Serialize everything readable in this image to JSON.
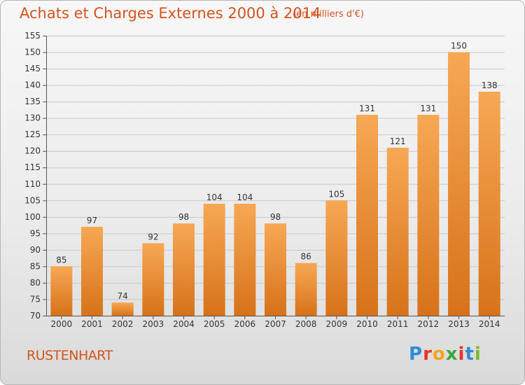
{
  "title": "Achats et Charges Externes 2000 à 2014",
  "subtitle": "(en milliers d'€)",
  "location": "RUSTENHART",
  "logo": {
    "text": "Proxiti",
    "colors": [
      "#2f8dd3",
      "#e8342a",
      "#f4a41c",
      "#3aa935",
      "#e8342a",
      "#2f8dd3",
      "#7cb92a"
    ]
  },
  "colors": {
    "bar_top": "#f7a854",
    "bar_bottom": "#d7721a",
    "title": "#d2541e",
    "grid": "#c8c8c8"
  },
  "chart_data": {
    "type": "bar",
    "title": "Achats et Charges Externes 2000 à 2014",
    "subtitle": "(en milliers d'€)",
    "categories": [
      "2000",
      "2001",
      "2002",
      "2003",
      "2004",
      "2005",
      "2006",
      "2007",
      "2008",
      "2009",
      "2010",
      "2011",
      "2012",
      "2013",
      "2014"
    ],
    "values": [
      85,
      97,
      74,
      92,
      98,
      104,
      104,
      98,
      86,
      105,
      131,
      121,
      131,
      150,
      138
    ],
    "ylim": [
      70,
      155
    ],
    "yticks": [
      70,
      75,
      80,
      85,
      90,
      95,
      100,
      105,
      110,
      115,
      120,
      125,
      130,
      135,
      140,
      145,
      150,
      155
    ],
    "grid": true
  }
}
